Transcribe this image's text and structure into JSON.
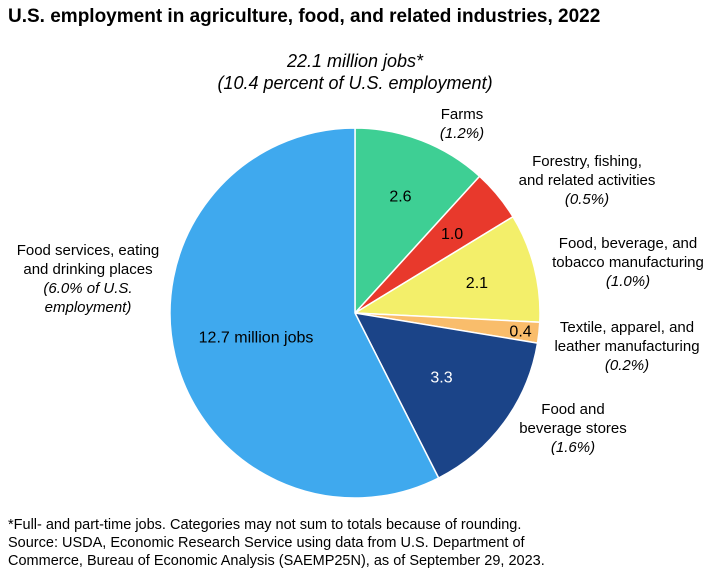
{
  "chart_data": {
    "type": "pie",
    "title": "U.S. employment in agriculture, food, and related industries, 2022",
    "subtitle": [
      "22.1 million jobs*",
      "(10.4 percent of U.S. employment)"
    ],
    "total_jobs_million": 22.1,
    "slices": [
      {
        "value": 2.6,
        "value_label": "2.6",
        "label": [
          "Farms"
        ],
        "share": "(1.2%)",
        "color": "#3ecf94"
      },
      {
        "value": 1.0,
        "value_label": "1.0",
        "label": [
          "Forestry, fishing,",
          "and related activities"
        ],
        "share": "(0.5%)",
        "color": "#e8392c"
      },
      {
        "value": 2.1,
        "value_label": "2.1",
        "label": [
          "Food, beverage, and",
          "tobacco manufacturing"
        ],
        "share": "(1.0%)",
        "color": "#f3ef6a"
      },
      {
        "value": 0.4,
        "value_label": "0.4",
        "label": [
          "Textile, apparel, and",
          "leather manufacturing"
        ],
        "share": "(0.2%)",
        "color": "#f9bd6b"
      },
      {
        "value": 3.3,
        "value_label": "3.3",
        "label": [
          "Food and",
          "beverage stores"
        ],
        "share": "(1.6%)",
        "color": "#1b4488"
      },
      {
        "value": 12.7,
        "value_label": "12.7 million jobs",
        "label": [
          "Food services, eating",
          "and drinking places"
        ],
        "share": "(6.0% of U.S.",
        "share_line2": "employment)",
        "color": "#3fa9ee"
      }
    ]
  },
  "footnote": [
    "*Full- and part-time jobs. Categories may not sum to totals because of rounding.",
    "Source: USDA, Economic Research Service using data from U.S. Department of",
    "Commerce, Bureau of Economic Analysis (SAEMP25N), as of September 29, 2023."
  ]
}
